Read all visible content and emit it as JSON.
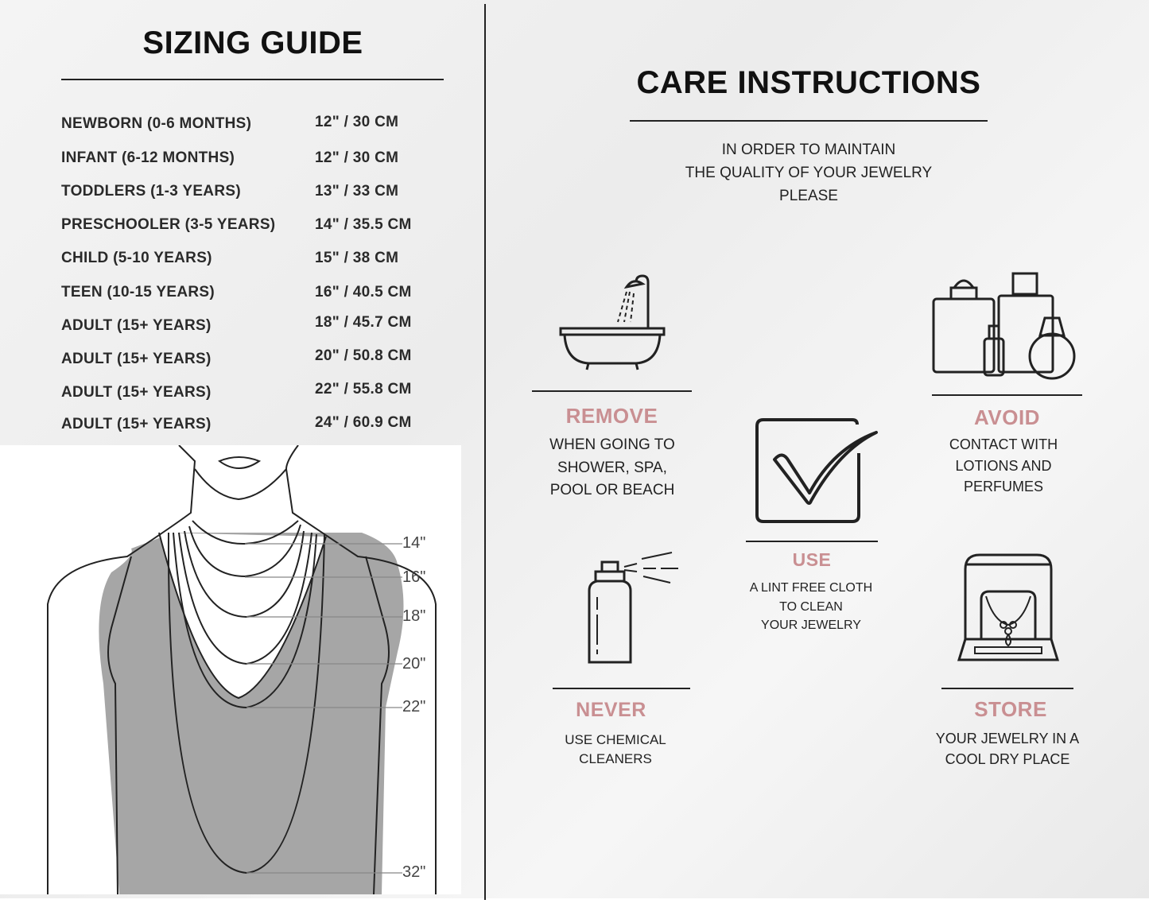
{
  "sizing_guide": {
    "title": "SIZING GUIDE",
    "rows": [
      {
        "label": "NEWBORN (0-6 MONTHS)",
        "value": "12\" / 30 CM"
      },
      {
        "label": "INFANT (6-12 MONTHS)",
        "value": "12\" / 30 CM"
      },
      {
        "label": "TODDLERS (1-3 YEARS)",
        "value": "13\" / 33 CM"
      },
      {
        "label": "PRESCHOOLER (3-5 YEARS)",
        "value": "14\" / 35.5 CM"
      },
      {
        "label": "CHILD (5-10 YEARS)",
        "value": "15\" / 38 CM"
      },
      {
        "label": "TEEN (10-15 YEARS)",
        "value": "16\" / 40.5 CM"
      },
      {
        "label": "ADULT (15+ YEARS)",
        "value": "18\" / 45.7 CM"
      },
      {
        "label": "ADULT (15+ YEARS)",
        "value": "20\" / 50.8 CM"
      },
      {
        "label": "ADULT (15+ YEARS)",
        "value": "22\" / 55.8 CM"
      },
      {
        "label": "ADULT (15+ YEARS)",
        "value": "24\" / 60.9 CM"
      }
    ],
    "necklace_lengths": [
      "14\"",
      "16\"",
      "18\"",
      "20\"",
      "22\"",
      "32\""
    ]
  },
  "care": {
    "title": "CARE INSTRUCTIONS",
    "intro": [
      "IN ORDER TO MAINTAIN",
      "THE QUALITY OF YOUR JEWELRY",
      "PLEASE"
    ],
    "accent_color": "#c98f92",
    "items": [
      {
        "icon": "bathtub-icon",
        "heading": "REMOVE",
        "lines": [
          "WHEN GOING TO",
          "SHOWER, SPA,",
          "POOL OR BEACH"
        ]
      },
      {
        "icon": "perfume-bottles-icon",
        "heading": "AVOID",
        "lines": [
          "CONTACT WITH",
          "LOTIONS AND",
          "PERFUMES"
        ]
      },
      {
        "icon": "checkbox-icon",
        "heading": "USE",
        "lines": [
          "A LINT FREE CLOTH",
          "TO CLEAN",
          "YOUR JEWELRY"
        ]
      },
      {
        "icon": "spray-bottle-icon",
        "heading": "NEVER",
        "lines": [
          "USE CHEMICAL",
          "CLEANERS"
        ]
      },
      {
        "icon": "jewelry-box-icon",
        "heading": "STORE",
        "lines": [
          "YOUR JEWELRY IN A",
          "COOL DRY PLACE"
        ]
      }
    ]
  }
}
